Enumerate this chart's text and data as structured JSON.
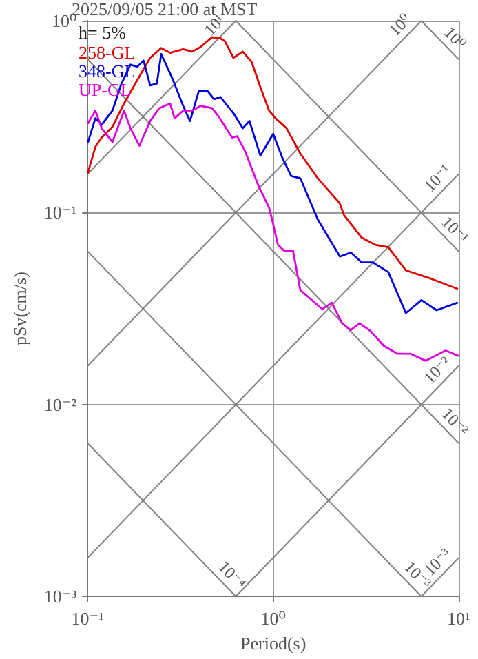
{
  "chart_data": {
    "type": "line",
    "title": "2025/09/05 21:00 at MST",
    "xlabel": "Period(s)",
    "ylabel": "pSv(cm/s)",
    "annotations": [
      "h= 5%",
      "10⁻⁴",
      "10⁻³",
      "10⁻²",
      "10⁻¹",
      "10⁰",
      "10⁻³",
      "10⁻²",
      "10⁻¹",
      "10⁰",
      "10¹"
    ],
    "series": [
      {
        "type": "line",
        "color": "#808080",
        "x": [
          0.1,
          0.6283
        ],
        "values": [
          0.006283,
          0.001
        ]
      },
      {
        "type": "line",
        "color": "#808080",
        "x": [
          0.1,
          6.283
        ],
        "values": [
          0.06283,
          0.001
        ]
      },
      {
        "type": "line",
        "color": "#808080",
        "x": [
          0.1,
          10
        ],
        "values": [
          0.6283,
          0.006283
        ]
      },
      {
        "type": "line",
        "color": "#808080",
        "x": [
          0.6283,
          10
        ],
        "values": [
          1,
          0.06283
        ]
      },
      {
        "type": "line",
        "color": "#808080",
        "x": [
          6.283,
          10
        ],
        "values": [
          1,
          0.6283
        ]
      },
      {
        "type": "line",
        "color": "#808080",
        "x": [
          6.283,
          10
        ],
        "values": [
          0.001,
          0.00159
        ]
      },
      {
        "type": "line",
        "color": "#808080",
        "x": [
          0.6283,
          10
        ],
        "values": [
          0.001,
          0.0159
        ]
      },
      {
        "type": "line",
        "color": "#808080",
        "x": [
          0.1,
          10
        ],
        "values": [
          0.00159,
          0.159
        ]
      },
      {
        "type": "line",
        "color": "#808080",
        "x": [
          0.1,
          6.283
        ],
        "values": [
          0.0159,
          1
        ]
      },
      {
        "type": "line",
        "color": "#808080",
        "x": [
          0.1,
          0.6283
        ],
        "values": [
          0.159,
          1
        ]
      },
      {
        "name": "258-GL",
        "color": "#dd0000",
        "x": [
          0.1,
          0.11,
          0.119,
          0.136,
          0.157,
          0.185,
          0.217,
          0.249,
          0.278,
          0.327,
          0.366,
          0.407,
          0.468,
          0.52,
          0.55,
          0.61,
          0.685,
          0.765,
          0.853,
          0.95,
          1.03,
          1.18,
          1.4,
          1.74,
          2.28,
          2.41,
          3.0,
          3.54,
          4.17,
          5.19,
          7.2,
          9.9
        ],
        "values": [
          0.16,
          0.22,
          0.246,
          0.28,
          0.37,
          0.49,
          0.64,
          0.72,
          0.68,
          0.71,
          0.69,
          0.73,
          0.82,
          0.81,
          0.78,
          0.64,
          0.69,
          0.61,
          0.45,
          0.34,
          0.31,
          0.275,
          0.203,
          0.151,
          0.112,
          0.097,
          0.074,
          0.068,
          0.066,
          0.05,
          0.045,
          0.04
        ]
      },
      {
        "name": "348-GL",
        "color": "#0000dd",
        "x": [
          0.1,
          0.11,
          0.119,
          0.136,
          0.152,
          0.17,
          0.185,
          0.2,
          0.217,
          0.236,
          0.249,
          0.286,
          0.327,
          0.356,
          0.397,
          0.443,
          0.48,
          0.52,
          0.61,
          0.685,
          0.745,
          0.853,
          1.0,
          1.12,
          1.25,
          1.4,
          1.74,
          2.29,
          2.62,
          3.0,
          3.44,
          4.17,
          5.19,
          6.3,
          7.6,
          9.9
        ],
        "values": [
          0.23,
          0.31,
          0.287,
          0.34,
          0.47,
          0.59,
          0.575,
          0.62,
          0.46,
          0.47,
          0.67,
          0.5,
          0.36,
          0.3,
          0.43,
          0.43,
          0.39,
          0.4,
          0.33,
          0.275,
          0.3,
          0.198,
          0.257,
          0.193,
          0.155,
          0.151,
          0.092,
          0.059,
          0.062,
          0.055,
          0.055,
          0.049,
          0.03,
          0.035,
          0.031,
          0.034
        ]
      },
      {
        "name": "UP-GL",
        "color": "#dd00dd",
        "x": [
          0.1,
          0.11,
          0.119,
          0.136,
          0.157,
          0.17,
          0.19,
          0.217,
          0.243,
          0.278,
          0.294,
          0.327,
          0.366,
          0.407,
          0.468,
          0.51,
          0.6,
          0.64,
          0.705,
          0.83,
          0.95,
          1.0,
          1.06,
          1.15,
          1.28,
          1.4,
          1.64,
          1.84,
          2.07,
          2.35,
          2.62,
          2.92,
          3.35,
          3.95,
          4.66,
          5.48,
          6.64,
          8.5,
          10
        ],
        "values": [
          0.29,
          0.34,
          0.275,
          0.233,
          0.34,
          0.275,
          0.223,
          0.3,
          0.35,
          0.37,
          0.31,
          0.34,
          0.34,
          0.36,
          0.35,
          0.315,
          0.246,
          0.25,
          0.209,
          0.139,
          0.106,
          0.087,
          0.068,
          0.063,
          0.063,
          0.0395,
          0.0345,
          0.0314,
          0.0339,
          0.0265,
          0.0244,
          0.0265,
          0.0241,
          0.0202,
          0.0184,
          0.0184,
          0.0169,
          0.0191,
          0.0179
        ]
      }
    ],
    "xlim": [
      0.1,
      10
    ],
    "ylim": [
      0.001,
      1
    ],
    "xticks": [
      {
        "value": 0.1,
        "label": "10⁻¹"
      },
      {
        "value": 1,
        "label": "10⁰"
      },
      {
        "value": 10,
        "label": "10¹"
      }
    ],
    "yticks": [
      {
        "value": 0.001,
        "label": "10⁻³"
      },
      {
        "value": 0.01,
        "label": "10⁻²"
      },
      {
        "value": 0.1,
        "label": "10⁻¹"
      },
      {
        "value": 1,
        "label": "10⁰"
      }
    ],
    "log": "xy",
    "grid": true,
    "legend": "top left",
    "marker": "none"
  }
}
